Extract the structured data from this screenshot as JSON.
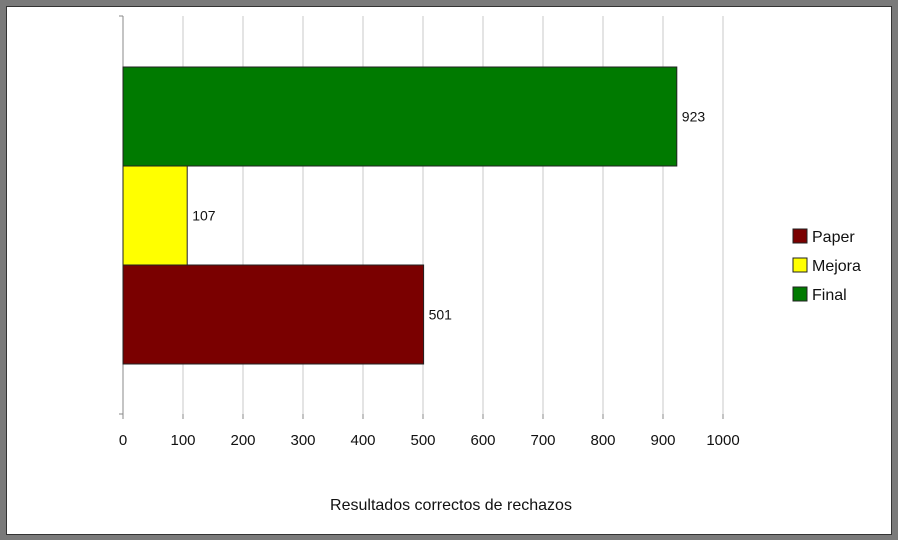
{
  "chart_data": {
    "type": "bar",
    "orientation": "horizontal",
    "xlabel": "Resultados correctos de rechazos",
    "xlim": [
      0,
      1000
    ],
    "x_ticks": [
      "0",
      "100",
      "200",
      "300",
      "400",
      "500",
      "600",
      "700",
      "800",
      "900",
      "1000"
    ],
    "grid": true,
    "legend_position": "right",
    "series": [
      {
        "name": "Paper",
        "value": 501,
        "label": "501",
        "color": "#7a0000"
      },
      {
        "name": "Mejora",
        "value": 107,
        "label": "107",
        "color": "#ffff00"
      },
      {
        "name": "Final",
        "value": 923,
        "label": "923",
        "color": "#007a00"
      }
    ]
  }
}
